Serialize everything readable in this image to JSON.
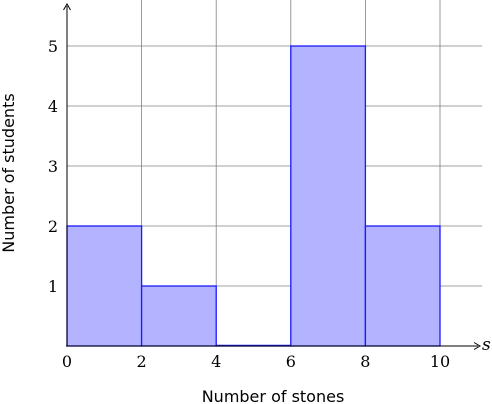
{
  "chart_data": {
    "type": "bar",
    "bins": [
      {
        "x0": 0,
        "x1": 2,
        "value": 2
      },
      {
        "x0": 2,
        "x1": 4,
        "value": 1
      },
      {
        "x0": 4,
        "x1": 6,
        "value": 0
      },
      {
        "x0": 6,
        "x1": 8,
        "value": 5
      },
      {
        "x0": 8,
        "x1": 10,
        "value": 2
      }
    ],
    "title": "",
    "xlabel": "Number of stones",
    "ylabel": "Number of students",
    "x_variable": "s",
    "xlim": [
      0,
      11
    ],
    "ylim": [
      0,
      6
    ],
    "x_ticks": [
      0,
      2,
      4,
      6,
      8,
      10
    ],
    "y_ticks": [
      1,
      2,
      3,
      4,
      5
    ],
    "x_tick_labels": [
      "0",
      "2",
      "4",
      "6",
      "8",
      "10"
    ],
    "y_tick_labels": [
      "1",
      "2",
      "3",
      "4",
      "5"
    ],
    "grid": true,
    "colors": {
      "bar_fill": "#b3b3ff",
      "bar_stroke": "#1a1aff",
      "grid": "#808080",
      "axis": "#000000"
    }
  }
}
